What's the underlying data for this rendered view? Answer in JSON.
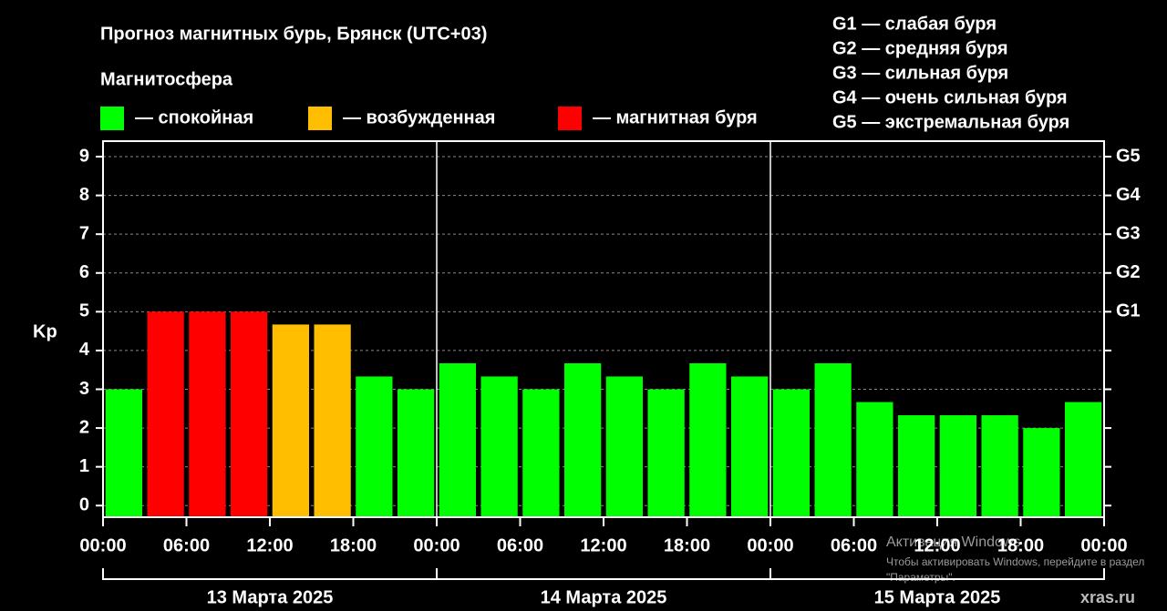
{
  "chart_data": {
    "type": "bar",
    "title": "Прогноз магнитных бурь, Брянск (UTC+03)",
    "legend_title": "Магнитосфера",
    "legend": [
      {
        "label": "— спокойная",
        "color": "#00ff00"
      },
      {
        "label": "— возбужденная",
        "color": "#ffbf00"
      },
      {
        "label": "— магнитная буря",
        "color": "#ff0000"
      }
    ],
    "g_scale": [
      "G1 — слабая буря",
      "G2 — средняя буря",
      "G3 — сильная буря",
      "G4 — очень сильная буря",
      "G5 — экстремальная буря"
    ],
    "ylabel": "Kp",
    "x": [
      1.5,
      4.5,
      7.5,
      10.5,
      13.5,
      16.5,
      19.5,
      22.5,
      25.5,
      28.5,
      31.5,
      34.5,
      37.5,
      40.5,
      43.5,
      46.5,
      49.5,
      52.5,
      55.5,
      58.5,
      61.5,
      64.5,
      67.5,
      70.5
    ],
    "values": [
      3,
      5,
      5,
      5,
      4.67,
      4.67,
      3.33,
      3,
      3.67,
      3.33,
      3,
      3.67,
      3.33,
      3,
      3.67,
      3.33,
      3,
      3.67,
      2.67,
      2.33,
      2.33,
      2.33,
      2,
      2.67
    ],
    "colors": [
      "#00ff00",
      "#ff0000",
      "#ff0000",
      "#ff0000",
      "#ffbf00",
      "#ffbf00",
      "#00ff00",
      "#00ff00",
      "#00ff00",
      "#00ff00",
      "#00ff00",
      "#00ff00",
      "#00ff00",
      "#00ff00",
      "#00ff00",
      "#00ff00",
      "#00ff00",
      "#00ff00",
      "#00ff00",
      "#00ff00",
      "#00ff00",
      "#00ff00",
      "#00ff00",
      "#00ff00"
    ],
    "xlim": [
      0,
      72
    ],
    "xticks": [
      {
        "value": 0,
        "label": "00:00"
      },
      {
        "value": 6,
        "label": "06:00"
      },
      {
        "value": 12,
        "label": "12:00"
      },
      {
        "value": 18,
        "label": "18:00"
      },
      {
        "value": 24,
        "label": "00:00"
      },
      {
        "value": 30,
        "label": "06:00"
      },
      {
        "value": 36,
        "label": "12:00"
      },
      {
        "value": 42,
        "label": "18:00"
      },
      {
        "value": 48,
        "label": "00:00"
      },
      {
        "value": 54,
        "label": "06:00"
      },
      {
        "value": 60,
        "label": "12:00"
      },
      {
        "value": 66,
        "label": "18:00"
      },
      {
        "value": 72,
        "label": "00:00"
      }
    ],
    "days": [
      {
        "start": 0,
        "end": 24,
        "label": "13 Марта 2025"
      },
      {
        "start": 24,
        "end": 48,
        "label": "14 Марта 2025"
      },
      {
        "start": 48,
        "end": 72,
        "label": "15 Марта 2025"
      }
    ],
    "ylim": [
      -0.3,
      9.4
    ],
    "yticks": [
      0,
      1,
      2,
      3,
      4,
      5,
      6,
      7,
      8,
      9
    ],
    "y2lim": [
      -0.3,
      9.4
    ],
    "y2ticks": [
      {
        "value": 5,
        "label": "G1"
      },
      {
        "value": 6,
        "label": "G2"
      },
      {
        "value": 7,
        "label": "G3"
      },
      {
        "value": 8,
        "label": "G4"
      },
      {
        "value": 9,
        "label": "G5"
      }
    ],
    "grid": true
  },
  "overlay": {
    "watermark": [
      "Активация Windows",
      "Чтобы активировать Windows, перейдите в раздел",
      "\"Параметры\"."
    ],
    "site": "xras.ru"
  }
}
